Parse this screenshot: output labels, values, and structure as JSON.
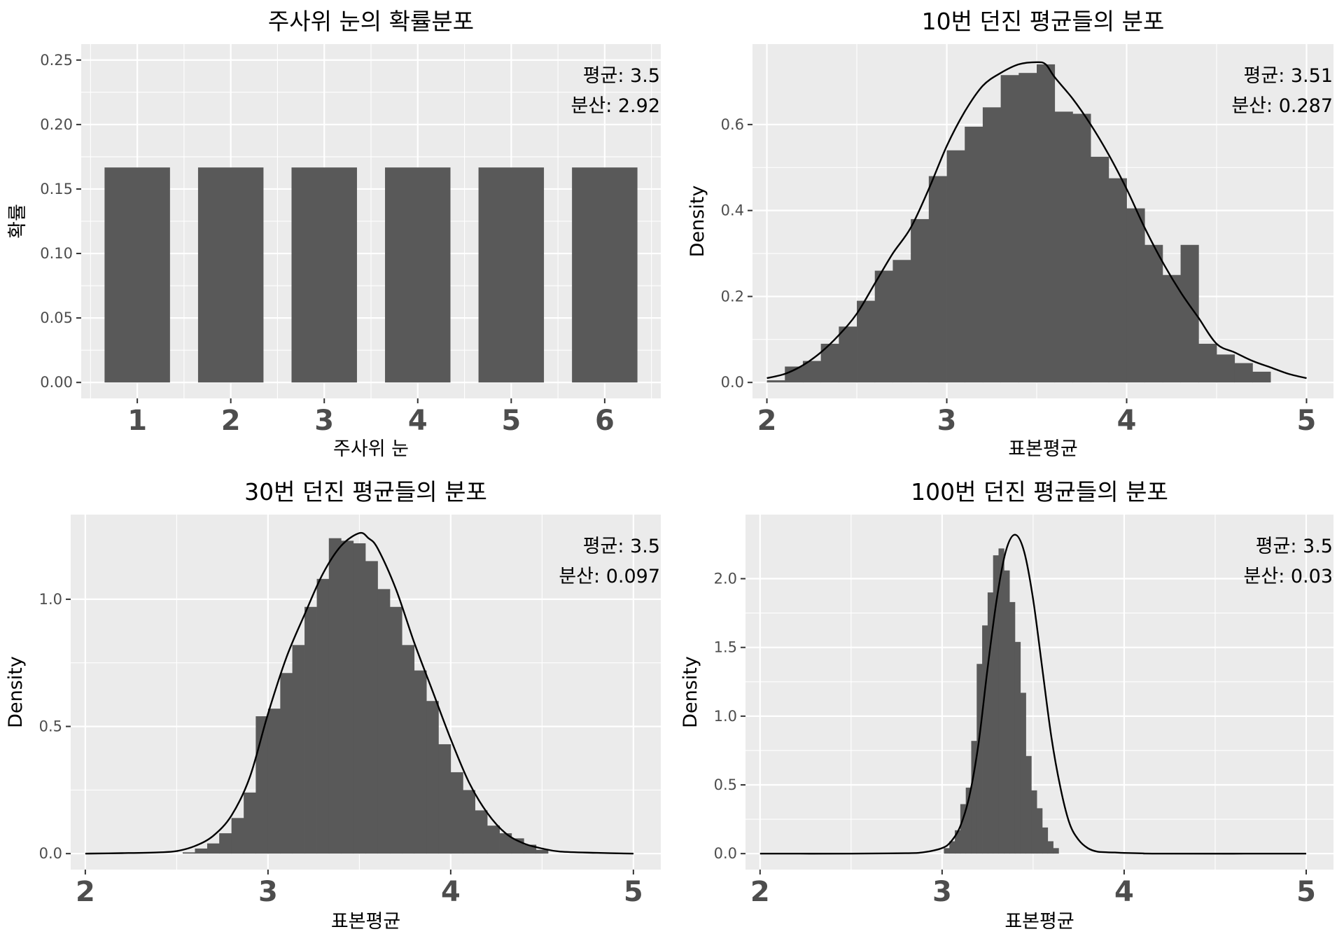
{
  "chart_data": [
    {
      "type": "bar",
      "title": "주사위 눈의 확률분포",
      "xlabel": "주사위 눈",
      "ylabel": "확률",
      "categories": [
        "1",
        "2",
        "3",
        "4",
        "5",
        "6"
      ],
      "values": [
        0.1667,
        0.1667,
        0.1667,
        0.1667,
        0.1667,
        0.1667
      ],
      "ylim": [
        0,
        0.25
      ],
      "yticks": [
        0,
        0.05,
        0.1,
        0.15,
        0.2,
        0.25
      ],
      "ytick_labels": [
        "0.00",
        "0.05",
        "0.10",
        "0.15",
        "0.20",
        "0.25"
      ],
      "annotations": [
        "평균: 3.5",
        "분산: 2.92"
      ],
      "grid": true
    },
    {
      "type": "bar",
      "subtype": "histogram-with-density",
      "title": "10번 던진 평균들의 분포",
      "xlabel": "표본평균",
      "ylabel": "Density",
      "xlim": [
        2,
        5
      ],
      "ylim": [
        0,
        0.75
      ],
      "xticks": [
        2,
        3,
        4,
        5
      ],
      "xtick_labels": [
        "2",
        "3",
        "4",
        "5"
      ],
      "yticks": [
        0,
        0.2,
        0.4,
        0.6
      ],
      "ytick_labels": [
        "0.0",
        "0.2",
        "0.4",
        "0.6"
      ],
      "bins": [
        {
          "x0": 2.0,
          "x1": 2.1,
          "y": 0.005
        },
        {
          "x0": 2.1,
          "x1": 2.2,
          "y": 0.037
        },
        {
          "x0": 2.2,
          "x1": 2.3,
          "y": 0.05
        },
        {
          "x0": 2.3,
          "x1": 2.4,
          "y": 0.09
        },
        {
          "x0": 2.4,
          "x1": 2.5,
          "y": 0.13
        },
        {
          "x0": 2.5,
          "x1": 2.6,
          "y": 0.19
        },
        {
          "x0": 2.6,
          "x1": 2.7,
          "y": 0.26
        },
        {
          "x0": 2.7,
          "x1": 2.8,
          "y": 0.285
        },
        {
          "x0": 2.8,
          "x1": 2.9,
          "y": 0.38
        },
        {
          "x0": 2.9,
          "x1": 3.0,
          "y": 0.48
        },
        {
          "x0": 3.0,
          "x1": 3.1,
          "y": 0.54
        },
        {
          "x0": 3.1,
          "x1": 3.2,
          "y": 0.595
        },
        {
          "x0": 3.2,
          "x1": 3.3,
          "y": 0.64
        },
        {
          "x0": 3.3,
          "x1": 3.4,
          "y": 0.715
        },
        {
          "x0": 3.4,
          "x1": 3.5,
          "y": 0.72
        },
        {
          "x0": 3.5,
          "x1": 3.6,
          "y": 0.74
        },
        {
          "x0": 3.6,
          "x1": 3.7,
          "y": 0.63
        },
        {
          "x0": 3.7,
          "x1": 3.8,
          "y": 0.625
        },
        {
          "x0": 3.8,
          "x1": 3.9,
          "y": 0.525
        },
        {
          "x0": 3.9,
          "x1": 4.0,
          "y": 0.475
        },
        {
          "x0": 4.0,
          "x1": 4.1,
          "y": 0.405
        },
        {
          "x0": 4.1,
          "x1": 4.2,
          "y": 0.32
        },
        {
          "x0": 4.2,
          "x1": 4.3,
          "y": 0.25
        },
        {
          "x0": 4.3,
          "x1": 4.4,
          "y": 0.32
        },
        {
          "x0": 4.4,
          "x1": 4.5,
          "y": 0.09
        },
        {
          "x0": 4.5,
          "x1": 4.6,
          "y": 0.065
        },
        {
          "x0": 4.6,
          "x1": 4.7,
          "y": 0.045
        },
        {
          "x0": 4.7,
          "x1": 4.8,
          "y": 0.025
        }
      ],
      "density": {
        "x": [
          2.0,
          2.1,
          2.2,
          2.3,
          2.4,
          2.5,
          2.6,
          2.7,
          2.8,
          2.9,
          3.0,
          3.1,
          3.2,
          3.3,
          3.4,
          3.5,
          3.55,
          3.6,
          3.7,
          3.8,
          3.9,
          4.0,
          4.1,
          4.2,
          4.3,
          4.4,
          4.5,
          4.6,
          4.7,
          4.8,
          4.9,
          5.0
        ],
        "y": [
          0.01,
          0.02,
          0.04,
          0.07,
          0.11,
          0.16,
          0.23,
          0.3,
          0.36,
          0.45,
          0.55,
          0.63,
          0.69,
          0.72,
          0.74,
          0.745,
          0.74,
          0.71,
          0.66,
          0.6,
          0.53,
          0.45,
          0.36,
          0.28,
          0.21,
          0.15,
          0.09,
          0.07,
          0.05,
          0.035,
          0.02,
          0.01
        ]
      },
      "annotations": [
        "평균: 3.51",
        "분산: 0.287"
      ],
      "grid": true
    },
    {
      "type": "bar",
      "subtype": "histogram-with-density",
      "title": "30번 던진 평균들의 분포",
      "xlabel": "표본평균",
      "ylabel": "Density",
      "xlim": [
        2,
        5
      ],
      "ylim": [
        0,
        1.27
      ],
      "xticks": [
        2,
        3,
        4,
        5
      ],
      "xtick_labels": [
        "2",
        "3",
        "4",
        "5"
      ],
      "yticks": [
        0,
        0.5,
        1.0
      ],
      "ytick_labels": [
        "0.0",
        "0.5",
        "1.0"
      ],
      "bins": [
        {
          "x0": 2.533,
          "x1": 2.6,
          "y": 0.005
        },
        {
          "x0": 2.6,
          "x1": 2.667,
          "y": 0.02
        },
        {
          "x0": 2.667,
          "x1": 2.733,
          "y": 0.04
        },
        {
          "x0": 2.733,
          "x1": 2.8,
          "y": 0.08
        },
        {
          "x0": 2.8,
          "x1": 2.867,
          "y": 0.14
        },
        {
          "x0": 2.867,
          "x1": 2.933,
          "y": 0.24
        },
        {
          "x0": 2.933,
          "x1": 3.0,
          "y": 0.54
        },
        {
          "x0": 3.0,
          "x1": 3.067,
          "y": 0.57
        },
        {
          "x0": 3.067,
          "x1": 3.133,
          "y": 0.71
        },
        {
          "x0": 3.133,
          "x1": 3.2,
          "y": 0.82
        },
        {
          "x0": 3.2,
          "x1": 3.267,
          "y": 0.97
        },
        {
          "x0": 3.267,
          "x1": 3.333,
          "y": 1.08
        },
        {
          "x0": 3.333,
          "x1": 3.4,
          "y": 1.24
        },
        {
          "x0": 3.4,
          "x1": 3.467,
          "y": 1.23
        },
        {
          "x0": 3.467,
          "x1": 3.533,
          "y": 1.22
        },
        {
          "x0": 3.533,
          "x1": 3.6,
          "y": 1.15
        },
        {
          "x0": 3.6,
          "x1": 3.667,
          "y": 1.04
        },
        {
          "x0": 3.667,
          "x1": 3.733,
          "y": 0.97
        },
        {
          "x0": 3.733,
          "x1": 3.8,
          "y": 0.82
        },
        {
          "x0": 3.8,
          "x1": 3.867,
          "y": 0.72
        },
        {
          "x0": 3.867,
          "x1": 3.933,
          "y": 0.6
        },
        {
          "x0": 3.933,
          "x1": 4.0,
          "y": 0.43
        },
        {
          "x0": 4.0,
          "x1": 4.067,
          "y": 0.32
        },
        {
          "x0": 4.067,
          "x1": 4.133,
          "y": 0.25
        },
        {
          "x0": 4.133,
          "x1": 4.2,
          "y": 0.17
        },
        {
          "x0": 4.2,
          "x1": 4.267,
          "y": 0.11
        },
        {
          "x0": 4.267,
          "x1": 4.333,
          "y": 0.08
        },
        {
          "x0": 4.333,
          "x1": 4.4,
          "y": 0.06
        },
        {
          "x0": 4.4,
          "x1": 4.467,
          "y": 0.035
        },
        {
          "x0": 4.467,
          "x1": 4.533,
          "y": 0.015
        }
      ],
      "density": {
        "x": [
          2.0,
          2.2,
          2.4,
          2.5,
          2.6,
          2.7,
          2.8,
          2.9,
          3.0,
          3.1,
          3.2,
          3.3,
          3.4,
          3.5,
          3.55,
          3.6,
          3.7,
          3.8,
          3.9,
          4.0,
          4.1,
          4.2,
          4.3,
          4.4,
          4.5,
          4.6,
          4.8,
          5.0
        ],
        "y": [
          0.0,
          0.002,
          0.005,
          0.01,
          0.03,
          0.07,
          0.15,
          0.3,
          0.55,
          0.77,
          0.94,
          1.1,
          1.21,
          1.26,
          1.24,
          1.2,
          1.04,
          0.83,
          0.64,
          0.45,
          0.28,
          0.16,
          0.08,
          0.04,
          0.02,
          0.008,
          0.003,
          0.0
        ]
      },
      "annotations": [
        "평균: 3.5",
        "분산: 0.097"
      ],
      "grid": true
    },
    {
      "type": "bar",
      "subtype": "histogram-with-density",
      "title": "100번 던진 평균들의 분포",
      "xlabel": "표본평균",
      "ylabel": "Density",
      "xlim": [
        2,
        5
      ],
      "ylim": [
        0,
        2.35
      ],
      "xticks": [
        2,
        3,
        4,
        5
      ],
      "xtick_labels": [
        "2",
        "3",
        "4",
        "5"
      ],
      "yticks": [
        0,
        0.5,
        1.0,
        1.5,
        2.0
      ],
      "ytick_labels": [
        "0.0",
        "0.5",
        "1.0",
        "1.5",
        "2.0"
      ],
      "bins": [
        {
          "x0": 3.01,
          "x1": 3.04,
          "y": 0.04
        },
        {
          "x0": 3.04,
          "x1": 3.07,
          "y": 0.09
        },
        {
          "x0": 3.07,
          "x1": 3.1,
          "y": 0.17
        },
        {
          "x0": 3.1,
          "x1": 3.13,
          "y": 0.36
        },
        {
          "x0": 3.13,
          "x1": 3.16,
          "y": 0.48
        },
        {
          "x0": 3.16,
          "x1": 3.19,
          "y": 0.82
        },
        {
          "x0": 3.19,
          "x1": 3.22,
          "y": 1.38
        },
        {
          "x0": 3.22,
          "x1": 3.25,
          "y": 1.66
        },
        {
          "x0": 3.25,
          "x1": 3.28,
          "y": 1.9
        },
        {
          "x0": 3.28,
          "x1": 3.31,
          "y": 2.17
        },
        {
          "x0": 3.31,
          "x1": 3.34,
          "y": 2.22
        },
        {
          "x0": 3.34,
          "x1": 3.37,
          "y": 2.06
        },
        {
          "x0": 3.37,
          "x1": 3.4,
          "y": 1.83
        },
        {
          "x0": 3.4,
          "x1": 3.43,
          "y": 1.54
        },
        {
          "x0": 3.43,
          "x1": 3.46,
          "y": 1.17
        },
        {
          "x0": 3.46,
          "x1": 3.49,
          "y": 0.71
        },
        {
          "x0": 3.49,
          "x1": 3.52,
          "y": 0.46
        },
        {
          "x0": 3.52,
          "x1": 3.55,
          "y": 0.33
        },
        {
          "x0": 3.55,
          "x1": 3.58,
          "y": 0.19
        },
        {
          "x0": 3.58,
          "x1": 3.61,
          "y": 0.09
        },
        {
          "x0": 3.61,
          "x1": 3.64,
          "y": 0.04
        }
      ],
      "density": {
        "x": [
          2.0,
          2.5,
          2.8,
          2.9,
          3.0,
          3.05,
          3.1,
          3.15,
          3.2,
          3.25,
          3.3,
          3.35,
          3.4,
          3.45,
          3.5,
          3.55,
          3.6,
          3.65,
          3.7,
          3.75,
          3.8,
          3.85,
          3.9,
          3.95,
          4.0,
          4.1,
          4.2,
          5.0
        ],
        "y": [
          0.0,
          0.0,
          0.003,
          0.01,
          0.04,
          0.09,
          0.2,
          0.42,
          0.8,
          1.35,
          1.85,
          2.2,
          2.32,
          2.2,
          1.85,
          1.35,
          0.85,
          0.48,
          0.22,
          0.1,
          0.04,
          0.015,
          0.01,
          0.008,
          0.005,
          0.002,
          0.0,
          0.0
        ]
      },
      "annotations": [
        "평균: 3.5",
        "분산: 0.03"
      ],
      "grid": true
    }
  ]
}
